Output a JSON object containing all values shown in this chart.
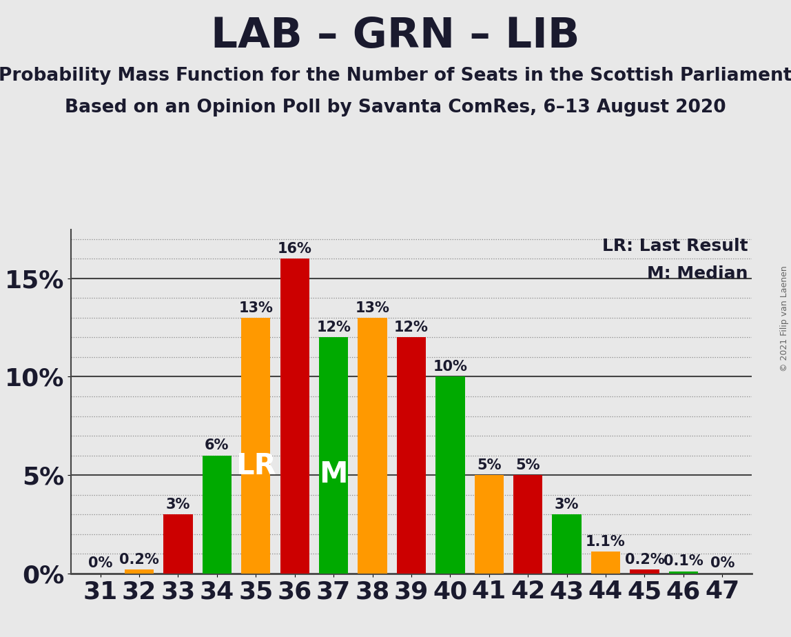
{
  "title": "LAB – GRN – LIB",
  "subtitle1": "Probability Mass Function for the Number of Seats in the Scottish Parliament",
  "subtitle2": "Based on an Opinion Poll by Savanta ComRes, 6–13 August 2020",
  "copyright": "© 2021 Filip van Laenen",
  "legend_lr": "LR: Last Result",
  "legend_m": "M: Median",
  "background_color": "#e8e8e8",
  "seats": [
    31,
    32,
    33,
    34,
    35,
    36,
    37,
    38,
    39,
    40,
    41,
    42,
    43,
    44,
    45,
    46,
    47
  ],
  "values": [
    0.0,
    0.2,
    3.0,
    6.0,
    13.0,
    16.0,
    12.0,
    13.0,
    12.0,
    10.0,
    5.0,
    5.0,
    3.0,
    1.1,
    0.2,
    0.1,
    0.0
  ],
  "colors": [
    "#cc0000",
    "#ff9900",
    "#cc0000",
    "#00aa00",
    "#ff9900",
    "#cc0000",
    "#00aa00",
    "#ff9900",
    "#cc0000",
    "#00aa00",
    "#ff9900",
    "#cc0000",
    "#00aa00",
    "#ff9900",
    "#cc0000",
    "#00aa00",
    "#cc0000"
  ],
  "lr_seat": 35,
  "median_seat": 37,
  "ylim_max": 17.5,
  "yticks": [
    0,
    5,
    10,
    15
  ],
  "ytick_labels": [
    "0%",
    "5%",
    "10%",
    "15%"
  ],
  "bar_width": 0.75,
  "title_fontsize": 44,
  "subtitle_fontsize": 19,
  "axis_tick_fontsize": 26,
  "annot_fontsize": 15,
  "marker_fontsize": 30,
  "legend_fontsize": 18,
  "copyright_fontsize": 9
}
